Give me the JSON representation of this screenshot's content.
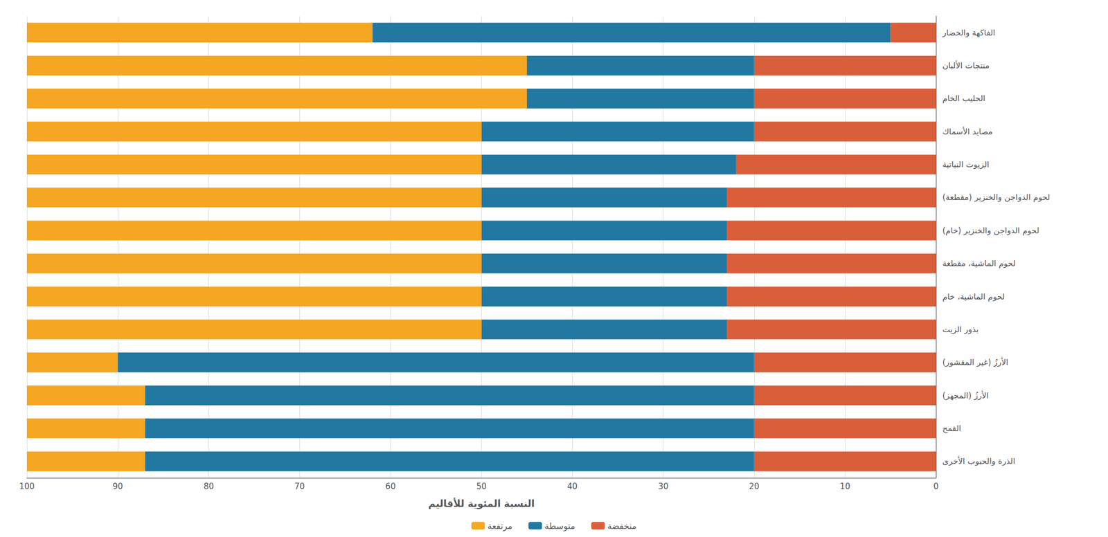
{
  "chart_data": {
    "type": "bar",
    "orientation": "horizontal",
    "stacked": true,
    "xlabel": "النسبة المئوية للأقاليم",
    "categories": [
      "الفاكهة والخضار",
      "منتجات الألبان",
      "الحليب الخام",
      "مصايد الأسماك",
      "الزيوت النباتية",
      "لحوم الدواجن والخنزير (مقطعة)",
      "لحوم الدواجن والخنزير (خام)",
      "لحوم الماشية، مقطعة",
      "لحوم الماشية، خام",
      "بذور الزيت",
      "الأرزُ (غير المقشور)",
      "الأرزُ (المجهز)",
      "القمح",
      "الذرة والحبوب الأخرى"
    ],
    "series": [
      {
        "name": "منخفضة",
        "color": "#d95f3b",
        "values": [
          5,
          20,
          20,
          20,
          22,
          23,
          23,
          23,
          23,
          23,
          20,
          20,
          20,
          20
        ]
      },
      {
        "name": "متوسطة",
        "color": "#2278a0",
        "values": [
          57,
          25,
          25,
          30,
          28,
          27,
          27,
          27,
          27,
          27,
          70,
          67,
          67,
          67
        ]
      },
      {
        "name": "مرتفعة",
        "color": "#f5a623",
        "values": [
          38,
          55,
          55,
          50,
          50,
          50,
          50,
          50,
          50,
          50,
          10,
          13,
          13,
          13
        ]
      }
    ],
    "xlim": [
      100,
      0
    ],
    "xticks": [
      0,
      10,
      20,
      30,
      40,
      50,
      60,
      70,
      80,
      90,
      100
    ],
    "grid": true,
    "legend": "bottom"
  }
}
